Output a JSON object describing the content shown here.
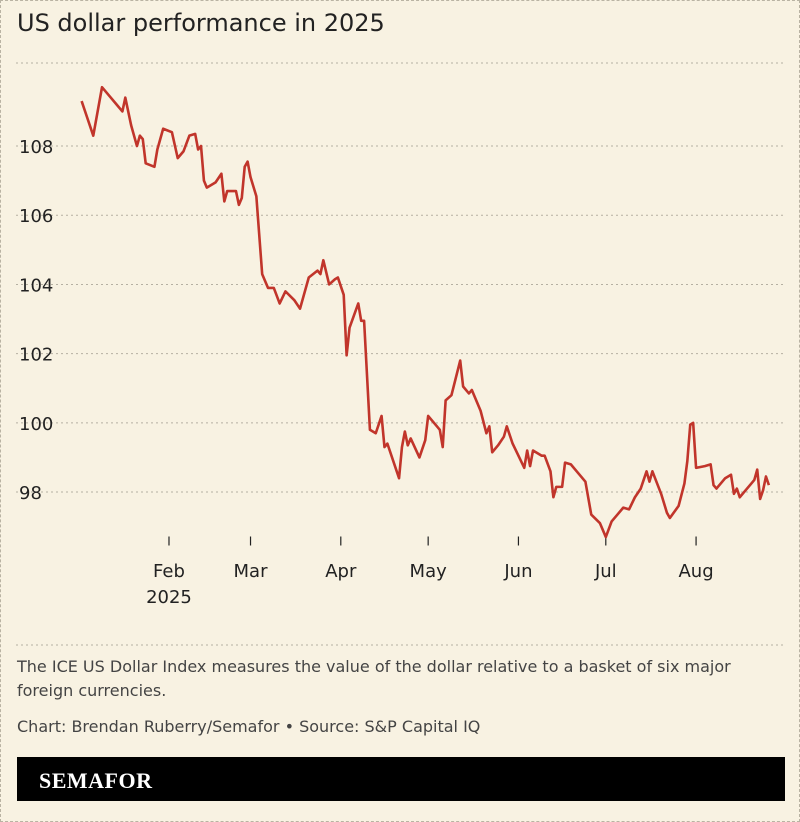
{
  "chart_data": {
    "type": "line",
    "title": "US dollar performance in 2025",
    "x": [
      2,
      4,
      6,
      9,
      12,
      14,
      16,
      17,
      19,
      21,
      22,
      23,
      24,
      27,
      28,
      30,
      33,
      35,
      37,
      39,
      41,
      42,
      43,
      44,
      45,
      48,
      50,
      51,
      52,
      55,
      56,
      57,
      58,
      59,
      60,
      62,
      64,
      66,
      68,
      70,
      72,
      75,
      77,
      80,
      83,
      84,
      85,
      87,
      89,
      90,
      92,
      93,
      94,
      97,
      98,
      99,
      101,
      103,
      105,
      106,
      107,
      111,
      112,
      113,
      114,
      115,
      118,
      120,
      121,
      124,
      125,
      126,
      127,
      129,
      132,
      133,
      135,
      136,
      139,
      141,
      142,
      143,
      145,
      147,
      148,
      150,
      152,
      154,
      155,
      156,
      157,
      160,
      161,
      163,
      164,
      165,
      167,
      168,
      170,
      172,
      175,
      177,
      180,
      182,
      184,
      186,
      188,
      190,
      192,
      194,
      196,
      197,
      198,
      201,
      203,
      204,
      207,
      209,
      210,
      211,
      212,
      213,
      216,
      218,
      219,
      220,
      223,
      225,
      226,
      227,
      228,
      230,
      232,
      233,
      234,
      235,
      236,
      237,
      238
    ],
    "series": [
      {
        "color": "#c1352b",
        "values": [
          109.3,
          108.8,
          108.3,
          109.7,
          109.4,
          109.2,
          109.0,
          109.4,
          108.6,
          108.0,
          108.3,
          108.2,
          107.5,
          107.4,
          107.9,
          108.5,
          108.4,
          107.65,
          107.85,
          108.3,
          108.35,
          107.9,
          108.0,
          107.0,
          106.8,
          106.95,
          107.2,
          106.4,
          106.7,
          106.7,
          106.3,
          106.5,
          107.4,
          107.55,
          107.1,
          106.55,
          104.3,
          103.9,
          103.9,
          103.45,
          103.8,
          103.55,
          103.3,
          104.2,
          104.4,
          104.3,
          104.7,
          104.0,
          104.15,
          104.2,
          103.7,
          101.95,
          102.75,
          103.45,
          102.95,
          102.95,
          99.8,
          99.7,
          100.2,
          99.3,
          99.4,
          98.4,
          99.3,
          99.75,
          99.35,
          99.55,
          99.0,
          99.5,
          100.2,
          99.9,
          99.8,
          99.3,
          100.65,
          100.8,
          101.8,
          101.05,
          100.85,
          100.95,
          100.35,
          99.7,
          99.9,
          99.15,
          99.35,
          99.6,
          99.9,
          99.4,
          99.05,
          98.7,
          99.2,
          98.75,
          99.2,
          99.05,
          99.05,
          98.6,
          97.85,
          98.15,
          98.15,
          98.85,
          98.8,
          98.6,
          98.3,
          97.35,
          97.1,
          96.7,
          97.15,
          97.35,
          97.55,
          97.5,
          97.85,
          98.1,
          98.6,
          98.3,
          98.6,
          97.95,
          97.4,
          97.25,
          97.6,
          98.25,
          98.9,
          99.95,
          100.0,
          98.7,
          98.75,
          98.8,
          98.2,
          98.1,
          98.4,
          98.5,
          97.95,
          98.1,
          97.85,
          98.05,
          98.25,
          98.35,
          98.65,
          97.8,
          98.05,
          98.45,
          98.2
        ]
      }
    ],
    "xlim": [
      0,
      240
    ],
    "xticks": [
      {
        "value": 32,
        "label": "Feb"
      },
      {
        "value": 60,
        "label": "Mar"
      },
      {
        "value": 91,
        "label": "Apr"
      },
      {
        "value": 121,
        "label": "May"
      },
      {
        "value": 152,
        "label": "Jun"
      },
      {
        "value": 182,
        "label": "Jul"
      },
      {
        "value": 213,
        "label": "Aug"
      }
    ],
    "xtick_year": "2025",
    "ylim": [
      96.6,
      110.4
    ],
    "yticks": [
      98,
      100,
      102,
      104,
      106,
      108
    ],
    "grid": true
  },
  "note": "The ICE US Dollar Index measures the value of the dollar relative to a basket of six major foreign currencies.",
  "credit": "Chart: Brendan Ruberry/Semafor • Source: S&P Capital IQ",
  "brand": "SEMAFOR"
}
